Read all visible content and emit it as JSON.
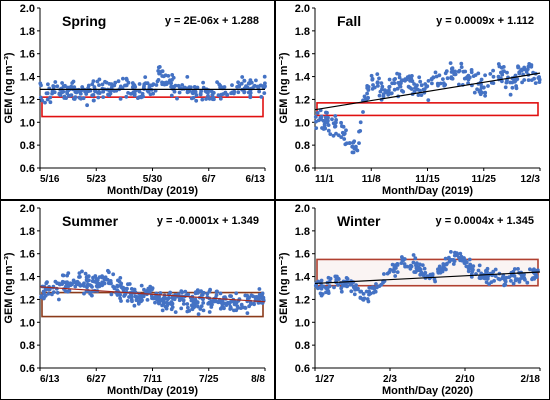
{
  "chart_data": [
    {
      "type": "scatter",
      "title": "Spring",
      "equation": "y = 2E-06x + 1.288",
      "xlabel": "Month/Day (2019)",
      "ylabel": "GEM (ng m⁻³)",
      "ylim": [
        0.6,
        2.0
      ],
      "y_ticks": [
        "0.6",
        "0.8",
        "1.0",
        "1.2",
        "1.4",
        "1.6",
        "1.8",
        "2.0"
      ],
      "x_ticks": [
        "5/16",
        "5/23",
        "5/30",
        "6/7",
        "6/13"
      ],
      "x_range": [
        0,
        28
      ],
      "trend": {
        "start": 1.288,
        "end": 1.288,
        "color": "#000000"
      },
      "band": {
        "low": 1.05,
        "high": 1.22,
        "color": "#e01010"
      },
      "n_points": 330,
      "profile": [
        [
          0,
          1.26
        ],
        [
          3,
          1.28
        ],
        [
          6,
          1.27
        ],
        [
          9,
          1.3
        ],
        [
          12,
          1.28
        ],
        [
          14,
          1.32
        ],
        [
          15,
          1.42
        ],
        [
          17,
          1.3
        ],
        [
          20,
          1.27
        ],
        [
          23,
          1.28
        ],
        [
          26,
          1.3
        ],
        [
          28,
          1.32
        ]
      ],
      "noise": 0.07,
      "series_color": "#4472c4"
    },
    {
      "type": "scatter",
      "title": "Fall",
      "equation": "y = 0.0009x + 1.112",
      "xlabel": "Month/Day (2019)",
      "ylabel": "GEM (ng m⁻³)",
      "ylim": [
        0.6,
        2.0
      ],
      "y_ticks": [
        "0.6",
        "0.8",
        "1.0",
        "1.2",
        "1.4",
        "1.6",
        "1.8",
        "2.0"
      ],
      "x_ticks": [
        "11/1",
        "11/8",
        "11/15",
        "11/25",
        "12/3"
      ],
      "x_range": [
        0,
        32
      ],
      "trend": {
        "start": 1.11,
        "end": 1.43,
        "color": "#000000"
      },
      "band": {
        "low": 1.06,
        "high": 1.17,
        "color": "#e01010"
      },
      "n_points": 300,
      "profile": [
        [
          0,
          1.05
        ],
        [
          2,
          0.98
        ],
        [
          4,
          0.9
        ],
        [
          5,
          0.8
        ],
        [
          6,
          0.75
        ],
        [
          7,
          1.2
        ],
        [
          8,
          1.38
        ],
        [
          10,
          1.25
        ],
        [
          12,
          1.35
        ],
        [
          14,
          1.32
        ],
        [
          16,
          1.3
        ],
        [
          18,
          1.38
        ],
        [
          20,
          1.45
        ],
        [
          22,
          1.4
        ],
        [
          24,
          1.3
        ],
        [
          26,
          1.42
        ],
        [
          28,
          1.35
        ],
        [
          30,
          1.45
        ],
        [
          32,
          1.4
        ]
      ],
      "noise": 0.08,
      "series_color": "#4472c4"
    },
    {
      "type": "scatter",
      "title": "Summer",
      "equation": "y = -0.0001x + 1.349",
      "xlabel": "Month/Day (2019)",
      "ylabel": "GEM (ng m⁻³)",
      "ylim": [
        0.6,
        2.0
      ],
      "y_ticks": [
        "0.6",
        "0.8",
        "1.0",
        "1.2",
        "1.4",
        "1.6",
        "1.8",
        "2.0"
      ],
      "x_ticks": [
        "6/13",
        "6/27",
        "7/11",
        "7/25",
        "8/8"
      ],
      "x_range": [
        0,
        56
      ],
      "trend": {
        "start": 1.31,
        "end": 1.18,
        "color": "#a0281e"
      },
      "band": {
        "low": 1.05,
        "high": 1.26,
        "color": "#8b3a1a"
      },
      "n_points": 420,
      "profile": [
        [
          0,
          1.28
        ],
        [
          4,
          1.28
        ],
        [
          8,
          1.38
        ],
        [
          12,
          1.32
        ],
        [
          16,
          1.36
        ],
        [
          20,
          1.3
        ],
        [
          24,
          1.22
        ],
        [
          28,
          1.25
        ],
        [
          30,
          1.2
        ],
        [
          34,
          1.18
        ],
        [
          38,
          1.18
        ],
        [
          42,
          1.2
        ],
        [
          46,
          1.16
        ],
        [
          50,
          1.18
        ],
        [
          54,
          1.2
        ],
        [
          56,
          1.22
        ]
      ],
      "noise": 0.07,
      "series_color": "#4472c4"
    },
    {
      "type": "scatter",
      "title": "Winter",
      "equation": "y = 0.0004x + 1.345",
      "xlabel": "Month/Day (2020)",
      "ylabel": "GEM (ng m⁻³)",
      "ylim": [
        0.6,
        2.0
      ],
      "y_ticks": [
        "0.6",
        "0.8",
        "1.0",
        "1.2",
        "1.4",
        "1.6",
        "1.8",
        "2.0"
      ],
      "x_ticks": [
        "1/27",
        "2/3",
        "2/10",
        "2/18"
      ],
      "x_range": [
        0,
        22
      ],
      "trend": {
        "start": 1.34,
        "end": 1.44,
        "color": "#000000"
      },
      "band": {
        "low": 1.32,
        "high": 1.55,
        "color": "#b04030"
      },
      "n_points": 300,
      "profile": [
        [
          0,
          1.3
        ],
        [
          1,
          1.3
        ],
        [
          2,
          1.35
        ],
        [
          4,
          1.3
        ],
        [
          5,
          1.2
        ],
        [
          6,
          1.32
        ],
        [
          7,
          1.38
        ],
        [
          8,
          1.5
        ],
        [
          9,
          1.55
        ],
        [
          10,
          1.48
        ],
        [
          11,
          1.4
        ],
        [
          12,
          1.42
        ],
        [
          13,
          1.55
        ],
        [
          14,
          1.58
        ],
        [
          15,
          1.5
        ],
        [
          16,
          1.42
        ],
        [
          18,
          1.38
        ],
        [
          20,
          1.4
        ],
        [
          22,
          1.42
        ]
      ],
      "noise": 0.05,
      "series_color": "#4472c4"
    }
  ]
}
